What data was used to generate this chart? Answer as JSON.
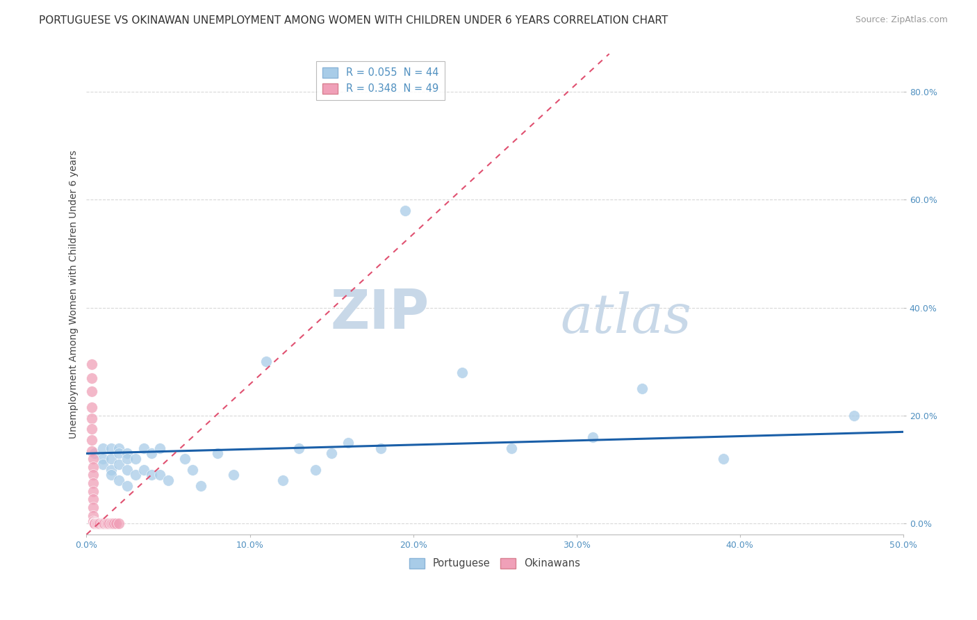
{
  "title": "PORTUGUESE VS OKINAWAN UNEMPLOYMENT AMONG WOMEN WITH CHILDREN UNDER 6 YEARS CORRELATION CHART",
  "source": "Source: ZipAtlas.com",
  "ylabel_label": "Unemployment Among Women with Children Under 6 years",
  "xlim": [
    0.0,
    0.5
  ],
  "ylim": [
    -0.02,
    0.87
  ],
  "portuguese_scatter": [
    [
      0.005,
      0.13
    ],
    [
      0.01,
      0.14
    ],
    [
      0.01,
      0.12
    ],
    [
      0.01,
      0.11
    ],
    [
      0.015,
      0.14
    ],
    [
      0.015,
      0.12
    ],
    [
      0.015,
      0.1
    ],
    [
      0.015,
      0.09
    ],
    [
      0.02,
      0.14
    ],
    [
      0.02,
      0.13
    ],
    [
      0.02,
      0.11
    ],
    [
      0.02,
      0.08
    ],
    [
      0.025,
      0.13
    ],
    [
      0.025,
      0.12
    ],
    [
      0.025,
      0.1
    ],
    [
      0.025,
      0.07
    ],
    [
      0.03,
      0.12
    ],
    [
      0.03,
      0.09
    ],
    [
      0.035,
      0.14
    ],
    [
      0.035,
      0.1
    ],
    [
      0.04,
      0.13
    ],
    [
      0.04,
      0.09
    ],
    [
      0.045,
      0.14
    ],
    [
      0.045,
      0.09
    ],
    [
      0.05,
      0.08
    ],
    [
      0.06,
      0.12
    ],
    [
      0.065,
      0.1
    ],
    [
      0.07,
      0.07
    ],
    [
      0.08,
      0.13
    ],
    [
      0.09,
      0.09
    ],
    [
      0.11,
      0.3
    ],
    [
      0.12,
      0.08
    ],
    [
      0.13,
      0.14
    ],
    [
      0.14,
      0.1
    ],
    [
      0.15,
      0.13
    ],
    [
      0.16,
      0.15
    ],
    [
      0.18,
      0.14
    ],
    [
      0.195,
      0.58
    ],
    [
      0.23,
      0.28
    ],
    [
      0.26,
      0.14
    ],
    [
      0.31,
      0.16
    ],
    [
      0.34,
      0.25
    ],
    [
      0.39,
      0.12
    ],
    [
      0.47,
      0.2
    ]
  ],
  "okinawan_scatter": [
    [
      0.003,
      0.295
    ],
    [
      0.003,
      0.27
    ],
    [
      0.003,
      0.245
    ],
    [
      0.003,
      0.215
    ],
    [
      0.003,
      0.195
    ],
    [
      0.003,
      0.175
    ],
    [
      0.003,
      0.155
    ],
    [
      0.003,
      0.135
    ],
    [
      0.004,
      0.12
    ],
    [
      0.004,
      0.105
    ],
    [
      0.004,
      0.09
    ],
    [
      0.004,
      0.075
    ],
    [
      0.004,
      0.06
    ],
    [
      0.004,
      0.045
    ],
    [
      0.004,
      0.03
    ],
    [
      0.004,
      0.015
    ],
    [
      0.004,
      0.005
    ],
    [
      0.005,
      0.003
    ],
    [
      0.005,
      0.002
    ],
    [
      0.005,
      0.001
    ],
    [
      0.005,
      0.001
    ],
    [
      0.005,
      0.001
    ],
    [
      0.005,
      0.001
    ],
    [
      0.005,
      0.001
    ],
    [
      0.005,
      0.001
    ],
    [
      0.005,
      0.001
    ],
    [
      0.006,
      0.001
    ],
    [
      0.006,
      0.001
    ],
    [
      0.007,
      0.001
    ],
    [
      0.007,
      0.001
    ],
    [
      0.008,
      0.001
    ],
    [
      0.008,
      0.001
    ],
    [
      0.009,
      0.001
    ],
    [
      0.01,
      0.001
    ],
    [
      0.01,
      0.001
    ],
    [
      0.01,
      0.001
    ],
    [
      0.011,
      0.001
    ],
    [
      0.011,
      0.001
    ],
    [
      0.012,
      0.001
    ],
    [
      0.012,
      0.001
    ],
    [
      0.013,
      0.001
    ],
    [
      0.013,
      0.001
    ],
    [
      0.014,
      0.001
    ],
    [
      0.015,
      0.001
    ],
    [
      0.015,
      0.001
    ],
    [
      0.016,
      0.001
    ],
    [
      0.017,
      0.001
    ],
    [
      0.018,
      0.001
    ],
    [
      0.02,
      0.001
    ]
  ],
  "portuguese_color": "#a8cce8",
  "okinawan_color": "#f0a0b8",
  "portuguese_line_color": "#1a5fa8",
  "okinawan_line_color": "#e05070",
  "watermark_zip": "ZIP",
  "watermark_atlas": "atlas",
  "watermark_color": "#c8d8e8",
  "background_color": "#ffffff",
  "gridline_color": "#d8d8d8",
  "title_fontsize": 11,
  "source_fontsize": 9,
  "tick_color": "#5090c0"
}
